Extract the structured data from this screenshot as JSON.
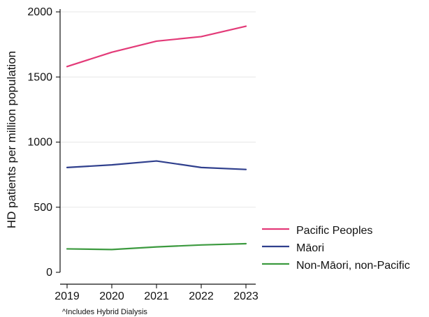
{
  "chart_data": {
    "type": "line",
    "title": "",
    "xlabel": "",
    "ylabel": "HD patients per million population",
    "x": [
      "2019",
      "2020",
      "2021",
      "2022",
      "2023"
    ],
    "ylim": [
      0,
      2000
    ],
    "yticks": [
      "0",
      "500",
      "1000",
      "1500",
      "2000"
    ],
    "grid": true,
    "legend_position": "right",
    "series": [
      {
        "name": "Pacific Peoples",
        "color": "#e33a78",
        "values": [
          1580,
          1690,
          1775,
          1810,
          1890
        ]
      },
      {
        "name": "Māori",
        "color": "#2f3f8d",
        "values": [
          805,
          825,
          855,
          805,
          790
        ]
      },
      {
        "name": "Non-Māori, non-Pacific",
        "color": "#3c9a3f",
        "values": [
          180,
          175,
          195,
          210,
          220
        ]
      }
    ],
    "annotations": [
      "^Includes Hybrid Dialysis"
    ]
  }
}
